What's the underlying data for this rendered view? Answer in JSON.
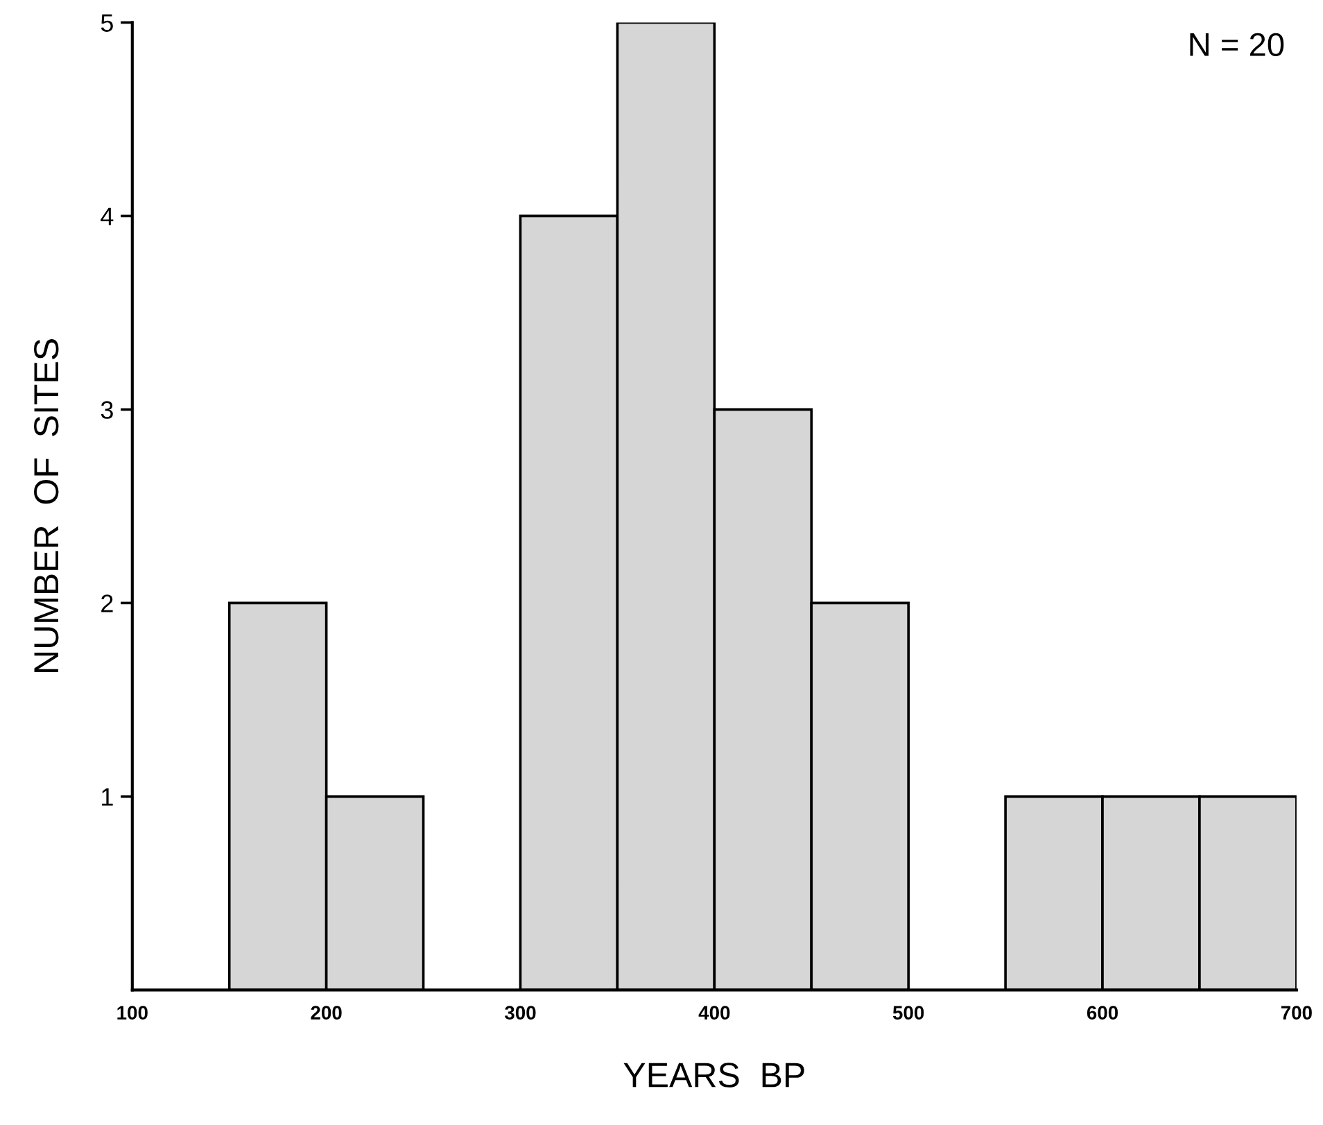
{
  "chart_data": {
    "type": "histogram",
    "xlabel": "YEARS  BP",
    "ylabel": "NUMBER  OF  SITES",
    "annotations": [
      "N = 20"
    ],
    "bins": [
      150,
      200,
      250,
      300,
      350,
      400,
      450,
      500,
      550,
      600,
      650,
      700
    ],
    "values": [
      2,
      1,
      0,
      4,
      5,
      3,
      2,
      0,
      1,
      1,
      1
    ],
    "color": "#d6d6d6",
    "xlim": [
      100,
      700
    ],
    "xticks": [
      100,
      200,
      300,
      400,
      500,
      600,
      700
    ],
    "ylim": [
      0,
      5
    ],
    "yticks": [
      1,
      2,
      3,
      4,
      5
    ],
    "grid": false,
    "legend": false
  }
}
